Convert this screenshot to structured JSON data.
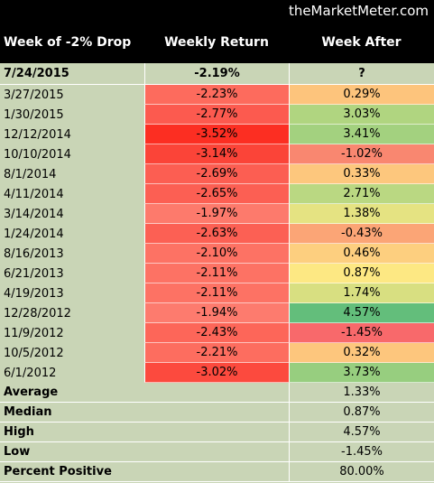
{
  "header": {
    "site": "theMarketMeter.com"
  },
  "table": {
    "columns": [
      "Week of -2% Drop",
      "Weekly Return",
      "Week After"
    ],
    "current": [
      "7/24/2015",
      "-2.19%",
      "?"
    ],
    "rows": [
      [
        "3/27/2015",
        "-2.23%",
        "0.29%"
      ],
      [
        "1/30/2015",
        "-2.77%",
        "3.03%"
      ],
      [
        "12/12/2014",
        "-3.52%",
        "3.41%"
      ],
      [
        "10/10/2014",
        "-3.14%",
        "-1.02%"
      ],
      [
        "8/1/2014",
        "-2.69%",
        "0.33%"
      ],
      [
        "4/11/2014",
        "-2.65%",
        "2.71%"
      ],
      [
        "3/14/2014",
        "-1.97%",
        "1.38%"
      ],
      [
        "1/24/2014",
        "-2.63%",
        "-0.43%"
      ],
      [
        "8/16/2013",
        "-2.10%",
        "0.46%"
      ],
      [
        "6/21/2013",
        "-2.11%",
        "0.87%"
      ],
      [
        "4/19/2013",
        "-2.11%",
        "1.74%"
      ],
      [
        "12/28/2012",
        "-1.94%",
        "4.57%"
      ],
      [
        "11/9/2012",
        "-2.43%",
        "-1.45%"
      ],
      [
        "10/5/2012",
        "-2.21%",
        "0.32%"
      ],
      [
        "6/1/2012",
        "-3.02%",
        "3.73%"
      ]
    ],
    "row_colors": [
      [
        "#fd6b5d",
        "#fdc47c"
      ],
      [
        "#fc5a4f",
        "#b0d580"
      ],
      [
        "#fc2e22",
        "#a3d17f"
      ],
      [
        "#fb4438",
        "#f98770"
      ],
      [
        "#fc5e52",
        "#fdc77d"
      ],
      [
        "#fc5f53",
        "#bad882"
      ],
      [
        "#fd7a6c",
        "#e5e382"
      ],
      [
        "#fc6054",
        "#fba576"
      ],
      [
        "#fd7264",
        "#fdcf7f"
      ],
      [
        "#fd7264",
        "#fde883"
      ],
      [
        "#fd7264",
        "#d8df81"
      ],
      [
        "#fd7b6e",
        "#63be7b"
      ],
      [
        "#fd6659",
        "#f8696b"
      ],
      [
        "#fd6d5f",
        "#fdc67d"
      ],
      [
        "#fc4a3e",
        "#97ce7f"
      ]
    ],
    "summary": [
      [
        "Average",
        "1.33%"
      ],
      [
        "Median",
        "0.87%"
      ],
      [
        "High",
        "4.57%"
      ],
      [
        "Low",
        "-1.45%"
      ],
      [
        "Percent Positive",
        "80.00%"
      ]
    ]
  }
}
